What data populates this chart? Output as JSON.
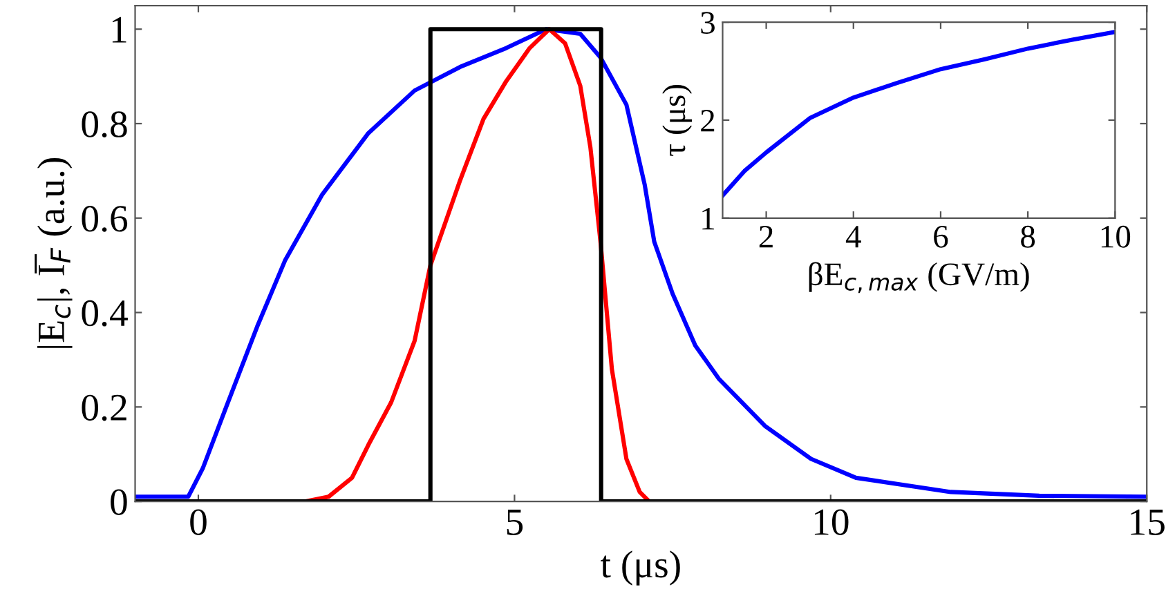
{
  "chart_data": [
    {
      "type": "line",
      "xlabel": "t (μs)",
      "ylabel": "|E$_{c}$|, I̅$_{F}$ (a.u.)",
      "xlim": [
        -1,
        15
      ],
      "ylim": [
        0,
        1.05
      ],
      "xticks": [
        0,
        5,
        10,
        15
      ],
      "yticks": [
        0,
        0.2,
        0.4,
        0.6,
        0.8,
        1
      ],
      "grid": false,
      "legend": false,
      "series": [
        {
          "color": "#0000ff",
          "x": [
            -1,
            -0.16,
            0.07,
            0.44,
            0.93,
            1.37,
            1.96,
            2.69,
            3.42,
            4.14,
            4.87,
            5.5,
            6.04,
            6.36,
            6.77,
            7.06,
            7.21,
            7.5,
            7.86,
            8.23,
            8.96,
            9.69,
            10.4,
            11.9,
            13.3,
            15
          ],
          "values": [
            0.01,
            0.01,
            0.07,
            0.2,
            0.37,
            0.51,
            0.65,
            0.78,
            0.87,
            0.92,
            0.96,
            1.0,
            0.99,
            0.94,
            0.84,
            0.67,
            0.55,
            0.44,
            0.33,
            0.26,
            0.16,
            0.09,
            0.05,
            0.02,
            0.012,
            0.01
          ]
        },
        {
          "color": "#ff0000",
          "x": [
            -1,
            1.7,
            2.06,
            2.43,
            2.69,
            3.05,
            3.42,
            3.67,
            4.14,
            4.51,
            4.87,
            5.24,
            5.55,
            5.8,
            6.04,
            6.2,
            6.36,
            6.54,
            6.77,
            6.98,
            7.13,
            15
          ],
          "values": [
            0,
            0,
            0.01,
            0.05,
            0.12,
            0.21,
            0.34,
            0.5,
            0.68,
            0.81,
            0.89,
            0.96,
            1.0,
            0.97,
            0.88,
            0.75,
            0.55,
            0.28,
            0.09,
            0.02,
            0,
            0
          ]
        },
        {
          "color": "#000000",
          "x": [
            -1,
            3.67,
            3.67,
            6.37,
            6.37,
            15
          ],
          "values": [
            0,
            0,
            1,
            1,
            0,
            0
          ]
        }
      ]
    },
    {
      "type": "line",
      "xlabel": "βE$_{c,max}$ (GV/m)",
      "ylabel": "τ (μs)",
      "xlim": [
        1,
        10
      ],
      "ylim": [
        1,
        3
      ],
      "xticks": [
        2,
        4,
        6,
        8,
        10
      ],
      "yticks": [
        1,
        2,
        3
      ],
      "grid": false,
      "legend": false,
      "series": [
        {
          "color": "#0000ff",
          "x": [
            1,
            1.5,
            2,
            3,
            4,
            5,
            6,
            7,
            8,
            9,
            10
          ],
          "values": [
            1.23,
            1.48,
            1.67,
            2.02,
            2.23,
            2.38,
            2.52,
            2.62,
            2.73,
            2.82,
            2.9
          ]
        }
      ]
    }
  ]
}
